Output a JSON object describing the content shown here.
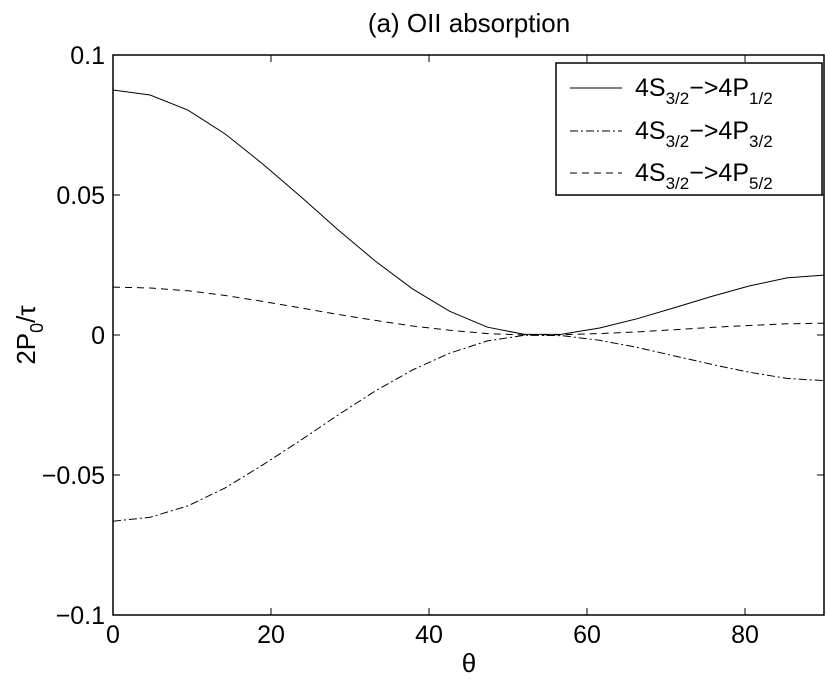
{
  "chart_data": {
    "type": "line",
    "title": "(a) OII absorption",
    "xlabel": "θ",
    "ylabel": {
      "a": "2P",
      "sub": "0",
      "b": "/τ"
    },
    "xlim": [
      0,
      90
    ],
    "ylim": [
      -0.1,
      0.1
    ],
    "xticks": [
      0,
      20,
      40,
      60,
      80
    ],
    "xtick_labels": [
      "0",
      "20",
      "40",
      "60",
      "80"
    ],
    "yticks": [
      0.1,
      0.05,
      0,
      -0.05,
      -0.1
    ],
    "ytick_labels": [
      "0.1",
      "0.05",
      "0",
      "−0.05",
      "−0.1"
    ],
    "grid": false,
    "legend_position": "top-right",
    "x": [
      0,
      4.7,
      9.5,
      14.2,
      18.9,
      23.7,
      28.4,
      33.2,
      37.9,
      42.6,
      47.4,
      52.1,
      56.8,
      61.6,
      66.3,
      71.1,
      75.8,
      80.5,
      85.3,
      90
    ],
    "series": [
      {
        "name": {
          "a": "4S",
          "sub1": "3/2",
          "b": "−>4P",
          "sub2": "1/2"
        },
        "dash": "solid",
        "values": [
          0.0875,
          0.0857,
          0.0803,
          0.0718,
          0.0612,
          0.0496,
          0.0378,
          0.0264,
          0.0165,
          0.0085,
          0.0028,
          0.0002,
          0.0003,
          0.0025,
          0.0058,
          0.0098,
          0.0138,
          0.0175,
          0.0204,
          0.0214
        ]
      },
      {
        "name": {
          "a": "4S",
          "sub1": "3/2",
          "b": "−>4P",
          "sub2": "3/2"
        },
        "dash": "dashdot",
        "values": [
          -0.0665,
          -0.0651,
          -0.061,
          -0.0546,
          -0.0465,
          -0.0377,
          -0.0287,
          -0.02,
          -0.0125,
          -0.0065,
          -0.0021,
          -0.0001,
          -0.0002,
          -0.0019,
          -0.0044,
          -0.0075,
          -0.0105,
          -0.0133,
          -0.0155,
          -0.0163
        ]
      },
      {
        "name": {
          "a": "4S",
          "sub1": "3/2",
          "b": "−>4P",
          "sub2": "5/2"
        },
        "dash": "dashed",
        "values": [
          0.0171,
          0.0168,
          0.0158,
          0.0141,
          0.012,
          0.0097,
          0.0074,
          0.0052,
          0.0032,
          0.0017,
          0.0005,
          0.0,
          0.0001,
          0.0005,
          0.0011,
          0.0019,
          0.0027,
          0.0034,
          0.004,
          0.0042
        ]
      }
    ]
  }
}
